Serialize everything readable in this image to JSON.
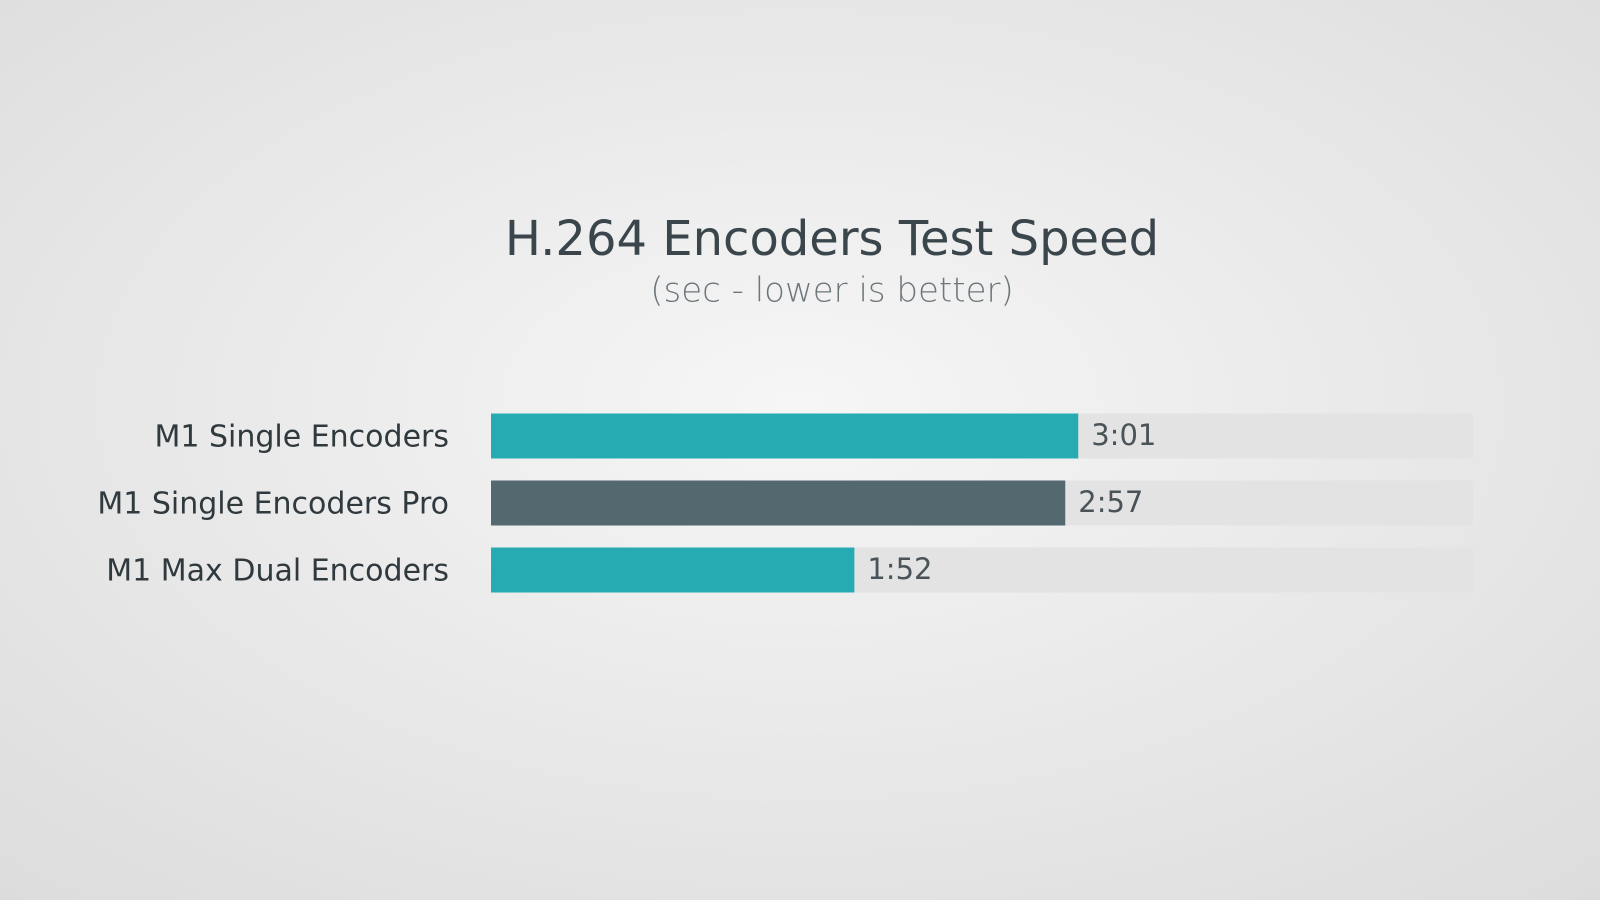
{
  "chart_data": {
    "type": "bar",
    "orientation": "horizontal",
    "title": "H.264 Encoders Test Speed",
    "subtitle": "(sec - lower is better)",
    "categories": [
      "M1 Single Encoders",
      "M1 Single Encoders Pro",
      "M1 Max Dual Encoders"
    ],
    "values": [
      181,
      177,
      112
    ],
    "value_labels": [
      "3:01",
      "2:57",
      "1:52"
    ],
    "colors": [
      "#26abb3",
      "#546870",
      "#26abb3"
    ]
  }
}
